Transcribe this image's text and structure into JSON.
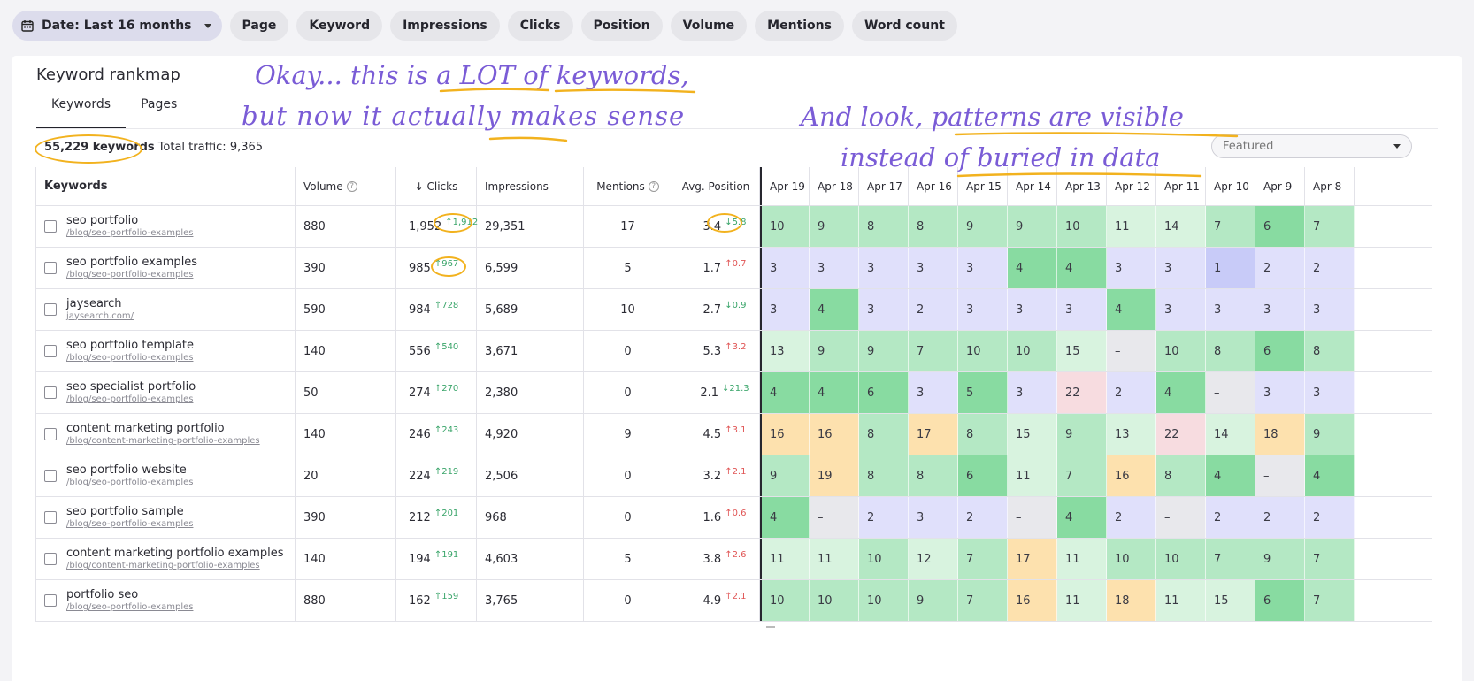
{
  "filters": {
    "date_label": "Date: Last 16 months",
    "chips": [
      "Page",
      "Keyword",
      "Impressions",
      "Clicks",
      "Position",
      "Volume",
      "Mentions",
      "Word count"
    ]
  },
  "card": {
    "title": "Keyword rankmap",
    "tabs": [
      "Keywords",
      "Pages"
    ],
    "keyword_count": "55,229 keywords",
    "total_traffic": "Total traffic: 9,365",
    "sort_select": "Featured"
  },
  "annotations": {
    "line1": "Okay... this is a LOT of keywords,",
    "line2": "but now it actually makes sense",
    "line3": "And look, patterns are visible",
    "line4": "instead of buried in data"
  },
  "columns": {
    "keywords": "Keywords",
    "volume": "Volume",
    "clicks": "↓ Clicks",
    "impressions": "Impressions",
    "mentions": "Mentions",
    "avg_position": "Avg. Position",
    "days": [
      "Apr 19",
      "Apr 18",
      "Apr 17",
      "Apr 16",
      "Apr 15",
      "Apr 14",
      "Apr 13",
      "Apr 12",
      "Apr 11",
      "Apr 10",
      "Apr 9",
      "Apr 8"
    ]
  },
  "rows": [
    {
      "keyword": "seo portfolio",
      "url": "/blog/seo-portfolio-examples",
      "volume": "880",
      "clicks": "1,952",
      "clicks_delta": "↑1,912",
      "clicks_dir": "up",
      "impressions": "29,351",
      "mentions": "17",
      "position": "3.4",
      "position_delta": "↓5.8",
      "position_dir": "up",
      "days": [
        "10",
        "9",
        "8",
        "8",
        "9",
        "9",
        "10",
        "11",
        "14",
        "7",
        "6",
        "7"
      ],
      "colors": [
        "g2",
        "g2",
        "g2",
        "g2",
        "g2",
        "g2",
        "g2",
        "g3",
        "g3",
        "g2",
        "g1",
        "g2"
      ]
    },
    {
      "keyword": "seo portfolio examples",
      "url": "/blog/seo-portfolio-examples",
      "volume": "390",
      "clicks": "985",
      "clicks_delta": "↑967",
      "clicks_dir": "up",
      "impressions": "6,599",
      "mentions": "5",
      "position": "1.7",
      "position_delta": "↑0.7",
      "position_dir": "down",
      "days": [
        "3",
        "3",
        "3",
        "3",
        "3",
        "4",
        "4",
        "3",
        "3",
        "1",
        "2",
        "2"
      ],
      "colors": [
        "lav",
        "lav",
        "lav",
        "lav",
        "lav",
        "g1",
        "g1",
        "lav",
        "lav",
        "lav2",
        "lav",
        "lav"
      ]
    },
    {
      "keyword": "jaysearch",
      "url": "jaysearch.com/",
      "volume": "590",
      "clicks": "984",
      "clicks_delta": "↑728",
      "clicks_dir": "up",
      "impressions": "5,689",
      "mentions": "10",
      "position": "2.7",
      "position_delta": "↓0.9",
      "position_dir": "up",
      "days": [
        "3",
        "4",
        "3",
        "2",
        "3",
        "3",
        "3",
        "4",
        "3",
        "3",
        "3",
        "3"
      ],
      "colors": [
        "lav",
        "g1",
        "lav",
        "lav",
        "lav",
        "lav",
        "lav",
        "g1",
        "lav",
        "lav",
        "lav",
        "lav"
      ]
    },
    {
      "keyword": "seo portfolio template",
      "url": "/blog/seo-portfolio-examples",
      "volume": "140",
      "clicks": "556",
      "clicks_delta": "↑540",
      "clicks_dir": "up",
      "impressions": "3,671",
      "mentions": "0",
      "position": "5.3",
      "position_delta": "↑3.2",
      "position_dir": "down",
      "days": [
        "13",
        "9",
        "9",
        "7",
        "10",
        "10",
        "15",
        "–",
        "10",
        "8",
        "6",
        "8"
      ],
      "colors": [
        "g3",
        "g2",
        "g2",
        "g2",
        "g2",
        "g2",
        "g3",
        "gray",
        "g2",
        "g2",
        "g1",
        "g2"
      ]
    },
    {
      "keyword": "seo specialist portfolio",
      "url": "/blog/seo-portfolio-examples",
      "volume": "50",
      "clicks": "274",
      "clicks_delta": "↑270",
      "clicks_dir": "up",
      "impressions": "2,380",
      "mentions": "0",
      "position": "2.1",
      "position_delta": "↓21.3",
      "position_dir": "up",
      "days": [
        "4",
        "4",
        "6",
        "3",
        "5",
        "3",
        "22",
        "2",
        "4",
        "–",
        "3",
        "3"
      ],
      "colors": [
        "g1",
        "g1",
        "g1",
        "lav",
        "g1",
        "lav",
        "pink",
        "lav",
        "g1",
        "gray",
        "lav",
        "lav"
      ]
    },
    {
      "keyword": "content marketing portfolio",
      "url": "/blog/content-marketing-portfolio-examples",
      "volume": "140",
      "clicks": "246",
      "clicks_delta": "↑243",
      "clicks_dir": "up",
      "impressions": "4,920",
      "mentions": "9",
      "position": "4.5",
      "position_delta": "↑3.1",
      "position_dir": "down",
      "days": [
        "16",
        "16",
        "8",
        "17",
        "8",
        "15",
        "9",
        "13",
        "22",
        "14",
        "18",
        "9"
      ],
      "colors": [
        "org",
        "org",
        "g2",
        "org",
        "g2",
        "g3",
        "g2",
        "g3",
        "pink",
        "g3",
        "org",
        "g2"
      ]
    },
    {
      "keyword": "seo portfolio website",
      "url": "/blog/seo-portfolio-examples",
      "volume": "20",
      "clicks": "224",
      "clicks_delta": "↑219",
      "clicks_dir": "up",
      "impressions": "2,506",
      "mentions": "0",
      "position": "3.2",
      "position_delta": "↑2.1",
      "position_dir": "down",
      "days": [
        "9",
        "19",
        "8",
        "8",
        "6",
        "11",
        "7",
        "16",
        "8",
        "4",
        "–",
        "4"
      ],
      "colors": [
        "g2",
        "org",
        "g2",
        "g2",
        "g1",
        "g3",
        "g2",
        "org",
        "g2",
        "g1",
        "gray",
        "g1"
      ]
    },
    {
      "keyword": "seo portfolio sample",
      "url": "/blog/seo-portfolio-examples",
      "volume": "390",
      "clicks": "212",
      "clicks_delta": "↑201",
      "clicks_dir": "up",
      "impressions": "968",
      "mentions": "0",
      "position": "1.6",
      "position_delta": "↑0.6",
      "position_dir": "down",
      "days": [
        "4",
        "–",
        "2",
        "3",
        "2",
        "–",
        "4",
        "2",
        "–",
        "2",
        "2",
        "2"
      ],
      "colors": [
        "g1",
        "gray",
        "lav",
        "lav",
        "lav",
        "gray",
        "g1",
        "lav",
        "gray",
        "lav",
        "lav",
        "lav"
      ]
    },
    {
      "keyword": "content marketing portfolio examples",
      "url": "/blog/content-marketing-portfolio-examples",
      "volume": "140",
      "clicks": "194",
      "clicks_delta": "↑191",
      "clicks_dir": "up",
      "impressions": "4,603",
      "mentions": "5",
      "position": "3.8",
      "position_delta": "↑2.6",
      "position_dir": "down",
      "days": [
        "11",
        "11",
        "10",
        "12",
        "7",
        "17",
        "11",
        "10",
        "10",
        "7",
        "9",
        "7"
      ],
      "colors": [
        "g3",
        "g3",
        "g2",
        "g3",
        "g2",
        "org",
        "g3",
        "g2",
        "g2",
        "g2",
        "g2",
        "g2"
      ]
    },
    {
      "keyword": "portfolio seo",
      "url": "/blog/seo-portfolio-examples",
      "volume": "880",
      "clicks": "162",
      "clicks_delta": "↑159",
      "clicks_dir": "up",
      "impressions": "3,765",
      "mentions": "0",
      "position": "4.9",
      "position_delta": "↑2.1",
      "position_dir": "down",
      "days": [
        "10",
        "10",
        "10",
        "9",
        "7",
        "16",
        "11",
        "18",
        "11",
        "15",
        "6",
        "7"
      ],
      "colors": [
        "g2",
        "g2",
        "g2",
        "g2",
        "g2",
        "org",
        "g3",
        "org",
        "g3",
        "g3",
        "g1",
        "g2"
      ]
    }
  ],
  "colors": {
    "accent_circle": "#f2b21e",
    "annotation_ink": "#7a5cd6",
    "cell_green_dark": "#88dba1",
    "cell_green": "#b4e8c4",
    "cell_green_light": "#d8f3df",
    "cell_lavender": "#e0e0fb",
    "cell_orange": "#fde1ae",
    "cell_pink": "#f7dce0",
    "cell_gray": "#e8e8ec"
  }
}
